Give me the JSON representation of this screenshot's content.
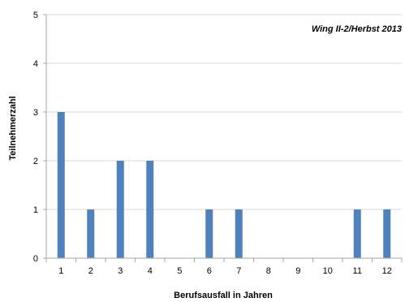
{
  "chart_data": {
    "type": "bar",
    "title": "",
    "annotation": "Wing II-2/Herbst  2013",
    "xlabel": "Berufsausfall in Jahren",
    "ylabel": "Teilnehmerzahl",
    "categories": [
      "1",
      "2",
      "3",
      "4",
      "5",
      "6",
      "7",
      "8",
      "9",
      "10",
      "11",
      "12"
    ],
    "values": [
      3,
      1,
      2,
      2,
      0,
      1,
      1,
      0,
      0,
      0,
      1,
      1
    ],
    "ylim": [
      0,
      5
    ],
    "yticks": [
      "0",
      "1",
      "2",
      "3",
      "4",
      "5"
    ],
    "grid": true,
    "legend": "none",
    "colors": {
      "bar": "#4f81bd",
      "grid": "#d9d9d9",
      "axis": "#a6a6a6"
    }
  }
}
